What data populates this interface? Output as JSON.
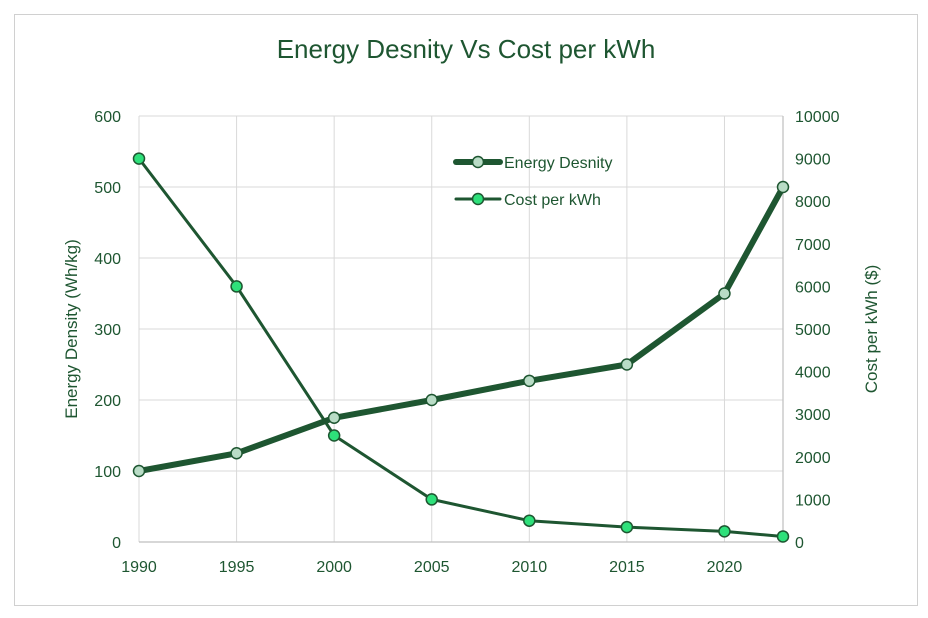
{
  "chart_data": {
    "type": "line",
    "title": "Energy Desnity Vs Cost per kWh",
    "x": [
      1990,
      1995,
      2000,
      2005,
      2010,
      2015,
      2020,
      2023
    ],
    "x_ticks": [
      "1990",
      "1995",
      "2000",
      "2005",
      "2010",
      "2015",
      "2020"
    ],
    "xlim": [
      1990,
      2023
    ],
    "ylabel_left": "Energy Density (Wh/kg)",
    "ylabel_right": "Cost per kWh ($)",
    "ylim_left": [
      0,
      600
    ],
    "ylim_right": [
      0,
      10000
    ],
    "y_ticks_left": [
      "0",
      "100",
      "200",
      "300",
      "400",
      "500",
      "600"
    ],
    "y_ticks_right": [
      "0",
      "1000",
      "2000",
      "3000",
      "4000",
      "5000",
      "6000",
      "7000",
      "8000",
      "9000",
      "10000"
    ],
    "grid": true,
    "legend_position": "top-center",
    "series": [
      {
        "name": "Energy Desnity",
        "axis": "left",
        "values": [
          100,
          125,
          175,
          200,
          227,
          250,
          350,
          500
        ],
        "color": "#1e5631",
        "marker_fill": "#b9dcc6"
      },
      {
        "name": "Cost per kWh",
        "axis": "right",
        "values": [
          9000,
          6000,
          2500,
          1000,
          500,
          350,
          250,
          130
        ],
        "color": "#1e5631",
        "marker_fill": "#2ee07a"
      }
    ],
    "colors": {
      "text": "#1e5631",
      "grid": "#d9d9d9",
      "axis": "#bfbfbf"
    }
  }
}
